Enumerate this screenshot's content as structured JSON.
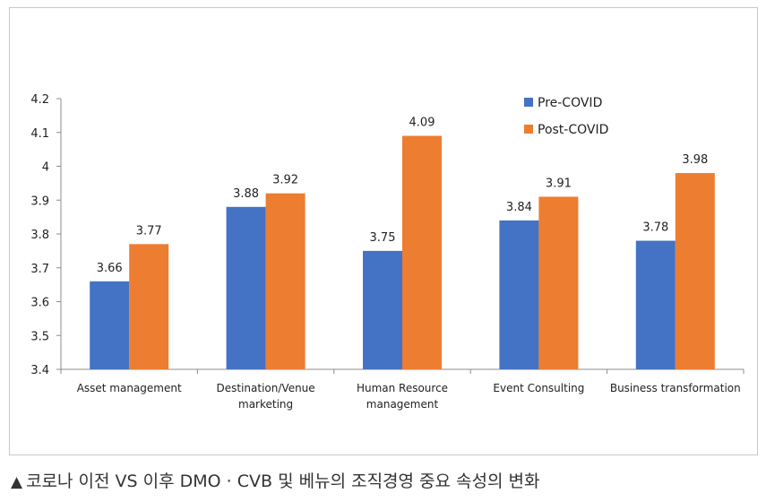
{
  "chart_data": {
    "type": "bar",
    "categories": [
      [
        "Asset management"
      ],
      [
        "Destination/Venue",
        "marketing"
      ],
      [
        "Human Resource",
        "management"
      ],
      [
        "Event Consulting"
      ],
      [
        "Business transformation"
      ]
    ],
    "series": [
      {
        "name": "Pre-COVID",
        "values": [
          3.66,
          3.88,
          3.75,
          3.84,
          3.78
        ],
        "color": "#4472c4",
        "labels": [
          "3.66",
          "3.88",
          "3.75",
          "3.84",
          "3.78"
        ]
      },
      {
        "name": "Post-COVID",
        "values": [
          3.77,
          3.92,
          4.09,
          3.91,
          3.98
        ],
        "color": "#ed7d31",
        "labels": [
          "3.77",
          "3.92",
          "4.09",
          "3.91",
          "3.98"
        ]
      }
    ],
    "ylim": [
      3.4,
      4.2
    ],
    "yticks": [
      3.4,
      3.5,
      3.6,
      3.7,
      3.8,
      3.9,
      4,
      4.1,
      4.2
    ],
    "ytick_labels": [
      "3.4",
      "3.5",
      "3.6",
      "3.7",
      "3.8",
      "3.9",
      "4",
      "4.1",
      "4.2"
    ],
    "grid": false,
    "legend": "top-right"
  },
  "caption": {
    "marker": "▲",
    "text": "코로나 이전 VS 이후 DMO · CVB 및 베뉴의 조직경영 중요 속성의 변화"
  }
}
